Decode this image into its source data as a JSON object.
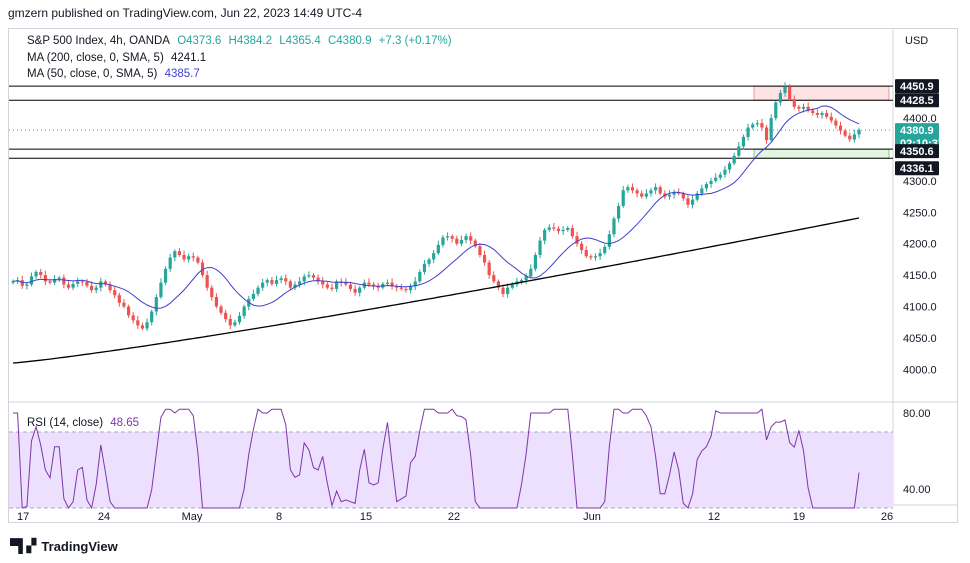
{
  "publisher": "gmzern published on TradingView.com, Jun 22, 2023 14:49 UTC-4",
  "legend": {
    "symbol": "S&P 500 Index, 4h, OANDA",
    "ohlc": {
      "o": "O4373.6",
      "h": "H4384.2",
      "l": "L4365.4",
      "c": "C4380.9",
      "chg": "+7.3 (+0.17%)"
    },
    "ma200": {
      "label": "MA (200, close, 0, SMA, 5)",
      "value": "4241.1"
    },
    "ma50": {
      "label": "MA (50, close, 0, SMA, 5)",
      "value": "4385.7"
    },
    "rsi": {
      "label": "RSI (14, close)",
      "value": "48.65"
    }
  },
  "currency": "USD",
  "logo": "TradingView",
  "colors": {
    "up": "#26a69a",
    "down": "#ef5350",
    "ma50": "#3f3fcf",
    "ma200": "#000000",
    "rsi": "#7e36a8",
    "rsi_band": "#ede0ff",
    "resistance": "#ef9a9a",
    "support": "#c8e6c9"
  },
  "chart_data": [
    {
      "type": "candlestick",
      "title": "S&P 500 Index, 4h, OANDA",
      "ylim": [
        3975,
        4475
      ],
      "y_ticks": [
        4000,
        4050,
        4100,
        4150,
        4200,
        4250,
        4300,
        4350,
        4400,
        4450
      ],
      "y_tick_labels": [
        "4000.0",
        "4050.0",
        "4100.0",
        "4150.0",
        "4200.0",
        "4250.0",
        "4300.0",
        "4350.0",
        "4400.0",
        "4450.0"
      ],
      "x_tick_labels": [
        "17",
        "24",
        "May",
        "8",
        "15",
        "22",
        "Jun",
        "12",
        "19",
        "26"
      ],
      "price_labels": [
        {
          "value": 4450.9,
          "label": "4450.9"
        },
        {
          "value": 4428.5,
          "label": "4428.5"
        },
        {
          "value": 4380.9,
          "label": "4380.9",
          "sub": "02:10:37"
        },
        {
          "value": 4350.6,
          "label": "4350.6"
        },
        {
          "value": 4336.1,
          "label": "4336.1"
        }
      ],
      "levels": {
        "resistance": [
          4428.5,
          4450.9
        ],
        "support": [
          4336.1,
          4350.6
        ]
      },
      "close": [
        4140,
        4142,
        4133,
        4135,
        4148,
        4155,
        4150,
        4140,
        4138,
        4144,
        4146,
        4135,
        4130,
        4136,
        4140,
        4139,
        4133,
        4126,
        4130,
        4140,
        4135,
        4126,
        4118,
        4106,
        4100,
        4086,
        4078,
        4070,
        4065,
        4075,
        4092,
        4115,
        4138,
        4160,
        4178,
        4188,
        4182,
        4175,
        4180,
        4178,
        4170,
        4150,
        4130,
        4115,
        4100,
        4090,
        4080,
        4070,
        4075,
        4085,
        4100,
        4112,
        4120,
        4130,
        4138,
        4142,
        4136,
        4142,
        4145,
        4140,
        4130,
        4135,
        4140,
        4148,
        4150,
        4146,
        4140,
        4135,
        4130,
        4128,
        4140,
        4138,
        4135,
        4128,
        4122,
        4130,
        4138,
        4135,
        4132,
        4130,
        4136,
        4138,
        4132,
        4130,
        4128,
        4126,
        4132,
        4140,
        4155,
        4168,
        4175,
        4185,
        4198,
        4210,
        4212,
        4208,
        4200,
        4206,
        4212,
        4205,
        4196,
        4182,
        4170,
        4150,
        4140,
        4130,
        4120,
        4130,
        4135,
        4140,
        4142,
        4148,
        4160,
        4182,
        4205,
        4222,
        4226,
        4224,
        4220,
        4222,
        4225,
        4212,
        4200,
        4190,
        4180,
        4178,
        4180,
        4185,
        4195,
        4215,
        4240,
        4260,
        4285,
        4290,
        4285,
        4280,
        4275,
        4280,
        4285,
        4290,
        4280,
        4275,
        4278,
        4282,
        4280,
        4272,
        4262,
        4270,
        4280,
        4288,
        4295,
        4300,
        4305,
        4310,
        4318,
        4328,
        4340,
        4355,
        4370,
        4385,
        4390,
        4392,
        4385,
        4365,
        4400,
        4425,
        4440,
        4450,
        4430,
        4418,
        4415,
        4418,
        4412,
        4408,
        4405,
        4408,
        4402,
        4396,
        4388,
        4380,
        4372,
        4366,
        4374,
        4381
      ]
    },
    {
      "type": "line",
      "title": "RSI (14, close)",
      "y_ticks": [
        40,
        80
      ],
      "y_tick_labels": [
        "40.00",
        "80.00"
      ],
      "band": [
        30,
        70
      ],
      "last": 48.65
    }
  ]
}
